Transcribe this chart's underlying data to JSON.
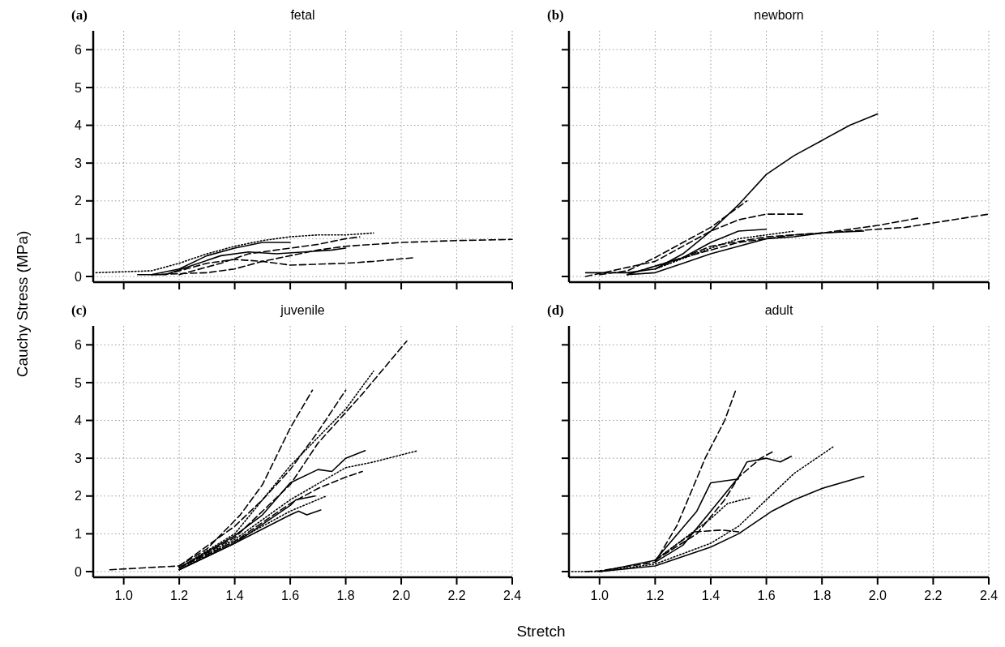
{
  "chart_data": [
    {
      "type": "line",
      "title": "fetal",
      "annotations": [
        "(a)"
      ],
      "xlabel": "Stretch",
      "ylabel": "Cauchy Stress (MPa)",
      "xlim": [
        0.89,
        2.4
      ],
      "ylim": [
        -0.15,
        6.5
      ],
      "xticks": [
        1,
        1.2,
        1.4,
        1.6,
        1.8,
        2,
        2.2,
        2.4
      ],
      "yticks": [
        0,
        1,
        2,
        3,
        4,
        5,
        6
      ],
      "grid": true,
      "tick_labels": "y",
      "series": [
        {
          "color": "#000000",
          "line_style": "dotted",
          "x": [
            0.9,
            1.1,
            1.2,
            1.3,
            1.4,
            1.5,
            1.6,
            1.7,
            1.8,
            1.9
          ],
          "values": [
            0.1,
            0.15,
            0.35,
            0.6,
            0.8,
            0.95,
            1.05,
            1.1,
            1.1,
            1.15
          ]
        },
        {
          "color": "#000000",
          "line_style": "solid",
          "x": [
            1.05,
            1.15,
            1.25,
            1.35,
            1.45,
            1.55,
            1.65,
            1.75,
            1.8
          ],
          "values": [
            0.05,
            0.05,
            0.3,
            0.55,
            0.65,
            0.6,
            0.65,
            0.7,
            0.75
          ]
        },
        {
          "color": "#000000",
          "line_style": "dashed",
          "x": [
            1.1,
            1.3,
            1.4,
            1.5,
            1.6,
            1.7,
            1.8,
            2.0,
            2.2,
            2.4
          ],
          "values": [
            0.05,
            0.1,
            0.2,
            0.4,
            0.55,
            0.7,
            0.8,
            0.9,
            0.95,
            0.98
          ]
        },
        {
          "color": "#000000",
          "line_style": "dashed",
          "x": [
            1.15,
            1.3,
            1.4,
            1.5,
            1.6,
            1.8,
            1.9,
            2.05
          ],
          "values": [
            0.05,
            0.35,
            0.45,
            0.4,
            0.3,
            0.35,
            0.4,
            0.5
          ]
        },
        {
          "color": "#000000",
          "line_style": "solid",
          "x": [
            1.1,
            1.2,
            1.3,
            1.4,
            1.5,
            1.6
          ],
          "values": [
            0.05,
            0.2,
            0.55,
            0.75,
            0.9,
            0.9
          ]
        },
        {
          "color": "#000000",
          "line_style": "dashed",
          "x": [
            1.2,
            1.35,
            1.45,
            1.6,
            1.7,
            1.8,
            1.85
          ],
          "values": [
            0.05,
            0.35,
            0.6,
            0.75,
            0.85,
            1.0,
            1.05
          ]
        }
      ]
    },
    {
      "type": "line",
      "title": "newborn",
      "annotations": [
        "(b)"
      ],
      "xlim": [
        0.89,
        2.4
      ],
      "ylim": [
        -0.15,
        6.5
      ],
      "xticks": [
        1,
        1.2,
        1.4,
        1.6,
        1.8,
        2,
        2.2,
        2.4
      ],
      "yticks": [
        0,
        1,
        2,
        3,
        4,
        5,
        6
      ],
      "grid": true,
      "tick_labels": false,
      "series": [
        {
          "color": "#000000",
          "line_style": "solid",
          "x": [
            0.95,
            1.1,
            1.2,
            1.3,
            1.4,
            1.5,
            1.6,
            1.7,
            1.8,
            1.9,
            2.0
          ],
          "values": [
            0.1,
            0.1,
            0.2,
            0.6,
            1.2,
            1.9,
            2.7,
            3.2,
            3.6,
            4.0,
            4.3
          ]
        },
        {
          "color": "#000000",
          "line_style": "dashed",
          "x": [
            1.0,
            1.1,
            1.2,
            1.3,
            1.4,
            1.53
          ],
          "values": [
            0.05,
            0.15,
            0.5,
            0.9,
            1.3,
            2.0
          ]
        },
        {
          "color": "#000000",
          "line_style": "dashed",
          "x": [
            0.95,
            1.2,
            1.4,
            1.5,
            1.6,
            1.73
          ],
          "values": [
            0.0,
            0.4,
            1.2,
            1.5,
            1.65,
            1.65
          ]
        },
        {
          "color": "#000000",
          "line_style": "solid",
          "x": [
            1.1,
            1.3,
            1.4,
            1.5,
            1.6
          ],
          "values": [
            0.05,
            0.5,
            0.9,
            1.2,
            1.25
          ]
        },
        {
          "color": "#000000",
          "line_style": "dashed",
          "x": [
            1.2,
            1.4,
            1.6,
            1.8,
            2.0,
            2.15
          ],
          "values": [
            0.2,
            0.8,
            1.05,
            1.15,
            1.35,
            1.55
          ]
        },
        {
          "color": "#000000",
          "line_style": "dashed",
          "x": [
            1.1,
            1.3,
            1.5,
            1.7,
            1.9,
            2.1,
            2.4
          ],
          "values": [
            0.05,
            0.5,
            0.9,
            1.1,
            1.2,
            1.3,
            1.65
          ]
        },
        {
          "color": "#000000",
          "line_style": "solid",
          "x": [
            1.1,
            1.2,
            1.3,
            1.4,
            1.5,
            1.6,
            1.7,
            1.8,
            1.95
          ],
          "values": [
            0.05,
            0.1,
            0.35,
            0.6,
            0.8,
            1.0,
            1.05,
            1.15,
            1.2
          ]
        },
        {
          "color": "#000000",
          "line_style": "dotted",
          "x": [
            1.2,
            1.4,
            1.5,
            1.6,
            1.7
          ],
          "values": [
            0.2,
            0.75,
            1.0,
            1.1,
            1.2
          ]
        }
      ]
    },
    {
      "type": "line",
      "title": "juvenile",
      "annotations": [
        "(c)"
      ],
      "xlim": [
        0.89,
        2.4
      ],
      "ylim": [
        -0.15,
        6.5
      ],
      "xticks": [
        {
          "value": 1,
          "label": "1.0"
        },
        {
          "value": 1.2,
          "label": "1.2"
        },
        {
          "value": 1.4,
          "label": "1.4"
        },
        {
          "value": 1.6,
          "label": "1.6"
        },
        {
          "value": 1.8,
          "label": "1.8"
        },
        {
          "value": 2,
          "label": "2.0"
        },
        {
          "value": 2.2,
          "label": "2.2"
        },
        {
          "value": 2.4,
          "label": "2.4"
        }
      ],
      "yticks": [
        0,
        1,
        2,
        3,
        4,
        5,
        6
      ],
      "grid": true,
      "series": [
        {
          "color": "#000000",
          "line_style": "dashed",
          "x": [
            0.95,
            1.2,
            1.3,
            1.42,
            1.5,
            1.6,
            1.68
          ],
          "values": [
            0.05,
            0.15,
            0.6,
            1.5,
            2.3,
            3.8,
            4.8
          ]
        },
        {
          "color": "#000000",
          "line_style": "dashed",
          "x": [
            1.2,
            1.4,
            1.6,
            1.7,
            1.86,
            2.02
          ],
          "values": [
            0.1,
            0.9,
            2.3,
            3.4,
            4.7,
            6.1
          ]
        },
        {
          "color": "#000000",
          "line_style": "dotted",
          "x": [
            1.2,
            1.4,
            1.6,
            1.8,
            1.9
          ],
          "values": [
            0.1,
            1.0,
            2.8,
            4.3,
            5.3
          ]
        },
        {
          "color": "#000000",
          "line_style": "dashed",
          "x": [
            1.2,
            1.4,
            1.5,
            1.6,
            1.7,
            1.8
          ],
          "values": [
            0.15,
            1.2,
            1.9,
            2.7,
            3.7,
            4.8
          ]
        },
        {
          "color": "#000000",
          "line_style": "solid",
          "x": [
            1.2,
            1.4,
            1.5,
            1.6,
            1.7,
            1.75,
            1.8,
            1.87
          ],
          "values": [
            0.1,
            0.95,
            1.5,
            2.35,
            2.7,
            2.65,
            3.0,
            3.2
          ]
        },
        {
          "color": "#000000",
          "line_style": "dotted",
          "x": [
            1.2,
            1.4,
            1.6,
            1.8,
            1.9,
            2.06
          ],
          "values": [
            0.1,
            0.85,
            1.9,
            2.75,
            2.9,
            3.2
          ]
        },
        {
          "color": "#000000",
          "line_style": "dashed",
          "x": [
            1.2,
            1.4,
            1.6,
            1.7,
            1.8,
            1.86
          ],
          "values": [
            0.1,
            0.8,
            1.8,
            2.2,
            2.5,
            2.65
          ]
        },
        {
          "color": "#000000",
          "line_style": "solid",
          "x": [
            1.2,
            1.4,
            1.6,
            1.62,
            1.69
          ],
          "values": [
            0.05,
            0.75,
            1.75,
            1.9,
            2.0
          ]
        },
        {
          "color": "#000000",
          "line_style": "solid",
          "x": [
            1.2,
            1.4,
            1.6,
            1.63,
            1.66,
            1.71
          ],
          "values": [
            0.05,
            0.75,
            1.5,
            1.6,
            1.5,
            1.63
          ]
        },
        {
          "color": "#000000",
          "line_style": "dotted",
          "x": [
            1.2,
            1.4,
            1.6,
            1.73
          ],
          "values": [
            0.05,
            0.8,
            1.6,
            2.0
          ]
        }
      ]
    },
    {
      "type": "line",
      "title": "adult",
      "annotations": [
        "(d)"
      ],
      "xlim": [
        0.89,
        2.4
      ],
      "ylim": [
        -0.15,
        6.5
      ],
      "xticks": [
        {
          "value": 1,
          "label": "1.0"
        },
        {
          "value": 1.2,
          "label": "1.2"
        },
        {
          "value": 1.4,
          "label": "1.4"
        },
        {
          "value": 1.6,
          "label": "1.6"
        },
        {
          "value": 1.8,
          "label": "1.8"
        },
        {
          "value": 2,
          "label": "2.0"
        },
        {
          "value": 2.2,
          "label": "2.2"
        },
        {
          "value": 2.4,
          "label": "2.4"
        }
      ],
      "yticks": [
        0,
        1,
        2,
        3,
        4,
        5,
        6
      ],
      "grid": true,
      "tick_labels": "x",
      "series": [
        {
          "color": "#000000",
          "line_style": "dashed",
          "x": [
            0.95,
            1.0,
            1.2,
            1.28,
            1.38,
            1.45,
            1.49
          ],
          "values": [
            0.0,
            0.02,
            0.25,
            1.24,
            3.0,
            4.0,
            4.8
          ]
        },
        {
          "color": "#000000",
          "line_style": "solid",
          "x": [
            1.0,
            1.2,
            1.35,
            1.4,
            1.5
          ],
          "values": [
            0.0,
            0.3,
            1.6,
            2.35,
            2.45
          ]
        },
        {
          "color": "#000000",
          "line_style": "solid",
          "x": [
            1.2,
            1.3,
            1.4,
            1.5,
            1.53,
            1.6,
            1.65,
            1.69
          ],
          "values": [
            0.25,
            0.7,
            1.6,
            2.5,
            2.9,
            3.0,
            2.9,
            3.05
          ]
        },
        {
          "color": "#000000",
          "line_style": "dashed",
          "x": [
            1.2,
            1.35,
            1.45,
            1.5,
            1.58,
            1.63
          ],
          "values": [
            0.3,
            1.0,
            1.9,
            2.5,
            3.0,
            3.2
          ]
        },
        {
          "color": "#000000",
          "line_style": "dotted",
          "x": [
            1.2,
            1.4,
            1.46,
            1.54
          ],
          "values": [
            0.3,
            1.4,
            1.8,
            1.95
          ]
        },
        {
          "color": "#000000",
          "line_style": "dashed",
          "x": [
            1.2,
            1.34,
            1.44,
            1.5
          ],
          "values": [
            0.3,
            1.05,
            1.1,
            1.05
          ]
        },
        {
          "color": "#000000",
          "line_style": "dotted",
          "x": [
            0.9,
            1.0,
            1.2,
            1.4,
            1.5,
            1.6,
            1.7,
            1.84
          ],
          "values": [
            0.0,
            0.0,
            0.2,
            0.75,
            1.2,
            1.9,
            2.6,
            3.3
          ]
        },
        {
          "color": "#000000",
          "line_style": "solid",
          "x": [
            1.0,
            1.2,
            1.4,
            1.5,
            1.6,
            1.62,
            1.7,
            1.8,
            1.95
          ],
          "values": [
            0.0,
            0.15,
            0.65,
            1.0,
            1.5,
            1.6,
            1.9,
            2.2,
            2.52
          ]
        }
      ]
    }
  ]
}
